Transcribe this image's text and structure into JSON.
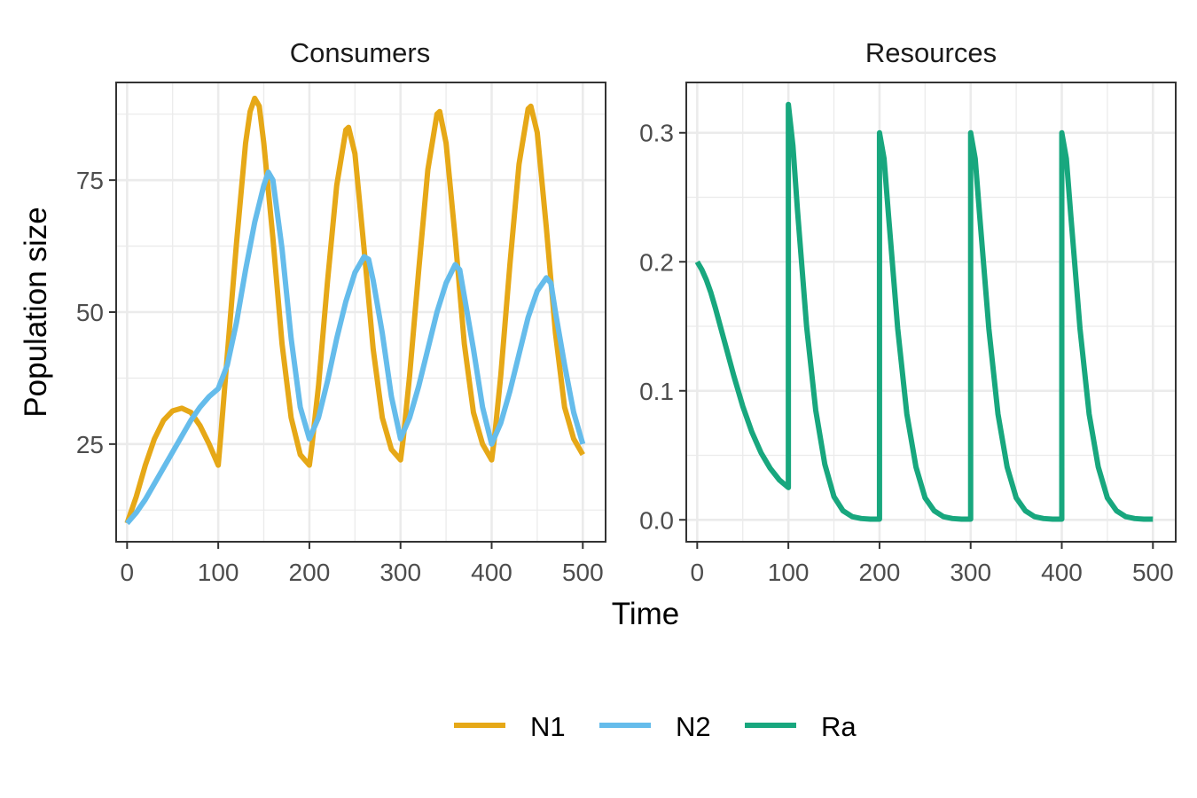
{
  "chart_data": {
    "type": "line",
    "xlabel": "Time",
    "ylabel": "Population size",
    "legend": {
      "position": "bottom",
      "entries": [
        {
          "name": "N1",
          "color": "#E6A817"
        },
        {
          "name": "N2",
          "color": "#65BCEB"
        },
        {
          "name": "Ra",
          "color": "#18A77E"
        }
      ]
    },
    "colors": {
      "N1": "#E6A817",
      "N2": "#65BCEB",
      "Ra": "#18A77E"
    },
    "grid": true,
    "panels": [
      {
        "id": "consumers",
        "title": "Consumers",
        "xlim": [
          -12,
          525
        ],
        "ylim": [
          6.5,
          93.5
        ],
        "x_ticks": [
          0,
          100,
          200,
          300,
          400,
          500
        ],
        "x_tick_labels": [
          "0",
          "100",
          "200",
          "300",
          "400",
          "500"
        ],
        "y_ticks": [
          25,
          50,
          75
        ],
        "y_tick_labels": [
          "25",
          "50",
          "75"
        ],
        "series": [
          {
            "name": "N1",
            "points": [
              [
                0,
                10
              ],
              [
                10,
                15
              ],
              [
                20,
                21
              ],
              [
                30,
                26
              ],
              [
                40,
                29.5
              ],
              [
                50,
                31.3
              ],
              [
                60,
                31.8
              ],
              [
                70,
                31
              ],
              [
                80,
                28.5
              ],
              [
                90,
                25
              ],
              [
                100,
                21
              ],
              [
                103,
                27
              ],
              [
                110,
                42
              ],
              [
                120,
                63
              ],
              [
                130,
                82
              ],
              [
                135,
                88
              ],
              [
                140,
                90.5
              ],
              [
                145,
                89
              ],
              [
                150,
                82
              ],
              [
                160,
                64
              ],
              [
                170,
                44
              ],
              [
                180,
                30
              ],
              [
                190,
                23
              ],
              [
                200,
                21
              ],
              [
                203,
                25
              ],
              [
                210,
                36
              ],
              [
                220,
                56
              ],
              [
                230,
                74
              ],
              [
                240,
                84.5
              ],
              [
                243,
                85
              ],
              [
                250,
                80
              ],
              [
                260,
                62
              ],
              [
                270,
                43
              ],
              [
                280,
                30
              ],
              [
                290,
                24
              ],
              [
                300,
                22
              ],
              [
                303,
                26
              ],
              [
                310,
                38
              ],
              [
                320,
                58
              ],
              [
                330,
                77
              ],
              [
                340,
                87.5
              ],
              [
                343,
                88
              ],
              [
                350,
                82
              ],
              [
                360,
                64
              ],
              [
                370,
                44
              ],
              [
                380,
                31
              ],
              [
                390,
                25
              ],
              [
                400,
                22
              ],
              [
                403,
                26
              ],
              [
                410,
                38
              ],
              [
                420,
                59
              ],
              [
                430,
                78
              ],
              [
                440,
                88.5
              ],
              [
                443,
                89
              ],
              [
                450,
                84
              ],
              [
                460,
                66
              ],
              [
                470,
                46
              ],
              [
                480,
                32
              ],
              [
                490,
                26
              ],
              [
                500,
                23
              ]
            ]
          },
          {
            "name": "N2",
            "points": [
              [
                0,
                10
              ],
              [
                10,
                12
              ],
              [
                20,
                14.5
              ],
              [
                30,
                17.5
              ],
              [
                40,
                20.5
              ],
              [
                50,
                23.5
              ],
              [
                60,
                26.5
              ],
              [
                70,
                29.5
              ],
              [
                80,
                32
              ],
              [
                90,
                34
              ],
              [
                100,
                35.5
              ],
              [
                110,
                40
              ],
              [
                120,
                48
              ],
              [
                130,
                58
              ],
              [
                140,
                67
              ],
              [
                150,
                74
              ],
              [
                155,
                76.5
              ],
              [
                160,
                75
              ],
              [
                170,
                62
              ],
              [
                180,
                45
              ],
              [
                190,
                32
              ],
              [
                200,
                26
              ],
              [
                210,
                30
              ],
              [
                220,
                37
              ],
              [
                230,
                45
              ],
              [
                240,
                52
              ],
              [
                250,
                57.5
              ],
              [
                260,
                60.5
              ],
              [
                265,
                60
              ],
              [
                270,
                56
              ],
              [
                280,
                46
              ],
              [
                290,
                34
              ],
              [
                300,
                26
              ],
              [
                310,
                30
              ],
              [
                320,
                36
              ],
              [
                330,
                43
              ],
              [
                340,
                50
              ],
              [
                350,
                55.5
              ],
              [
                360,
                59
              ],
              [
                365,
                58
              ],
              [
                370,
                53
              ],
              [
                380,
                43
              ],
              [
                390,
                32
              ],
              [
                400,
                25
              ],
              [
                410,
                29
              ],
              [
                420,
                35
              ],
              [
                430,
                42
              ],
              [
                440,
                49
              ],
              [
                450,
                54
              ],
              [
                460,
                56.5
              ],
              [
                465,
                55.5
              ],
              [
                470,
                50
              ],
              [
                480,
                40
              ],
              [
                490,
                31
              ],
              [
                500,
                25
              ]
            ]
          }
        ]
      },
      {
        "id": "resources",
        "title": "Resources",
        "xlim": [
          -12,
          525
        ],
        "ylim": [
          -0.017,
          0.339
        ],
        "x_ticks": [
          0,
          100,
          200,
          300,
          400,
          500
        ],
        "x_tick_labels": [
          "0",
          "100",
          "200",
          "300",
          "400",
          "500"
        ],
        "y_ticks": [
          0.0,
          0.1,
          0.2,
          0.3
        ],
        "y_tick_labels": [
          "0.0",
          "0.1",
          "0.2",
          "0.3"
        ],
        "series": [
          {
            "name": "Ra",
            "points": [
              [
                0,
                0.2
              ],
              [
                5,
                0.194
              ],
              [
                10,
                0.186
              ],
              [
                15,
                0.176
              ],
              [
                20,
                0.164
              ],
              [
                30,
                0.138
              ],
              [
                40,
                0.112
              ],
              [
                50,
                0.088
              ],
              [
                60,
                0.068
              ],
              [
                70,
                0.052
              ],
              [
                80,
                0.04
              ],
              [
                90,
                0.031
              ],
              [
                100,
                0.025
              ],
              [
                100,
                0.322
              ],
              [
                105,
                0.29
              ],
              [
                110,
                0.24
              ],
              [
                120,
                0.15
              ],
              [
                130,
                0.085
              ],
              [
                140,
                0.043
              ],
              [
                150,
                0.018
              ],
              [
                160,
                0.007
              ],
              [
                170,
                0.0025
              ],
              [
                180,
                0.001
              ],
              [
                190,
                0.0005
              ],
              [
                200,
                0.0005
              ],
              [
                200,
                0.3
              ],
              [
                205,
                0.28
              ],
              [
                210,
                0.235
              ],
              [
                220,
                0.148
              ],
              [
                230,
                0.082
              ],
              [
                240,
                0.041
              ],
              [
                250,
                0.017
              ],
              [
                260,
                0.007
              ],
              [
                270,
                0.0025
              ],
              [
                280,
                0.001
              ],
              [
                290,
                0.0005
              ],
              [
                300,
                0.0005
              ],
              [
                300,
                0.3
              ],
              [
                305,
                0.28
              ],
              [
                310,
                0.235
              ],
              [
                320,
                0.148
              ],
              [
                330,
                0.082
              ],
              [
                340,
                0.041
              ],
              [
                350,
                0.017
              ],
              [
                360,
                0.007
              ],
              [
                370,
                0.0025
              ],
              [
                380,
                0.001
              ],
              [
                390,
                0.0005
              ],
              [
                400,
                0.0005
              ],
              [
                400,
                0.3
              ],
              [
                405,
                0.28
              ],
              [
                410,
                0.235
              ],
              [
                420,
                0.148
              ],
              [
                430,
                0.082
              ],
              [
                440,
                0.041
              ],
              [
                450,
                0.017
              ],
              [
                460,
                0.007
              ],
              [
                470,
                0.0025
              ],
              [
                480,
                0.001
              ],
              [
                490,
                0.0005
              ],
              [
                500,
                0.0005
              ]
            ]
          }
        ]
      }
    ]
  }
}
